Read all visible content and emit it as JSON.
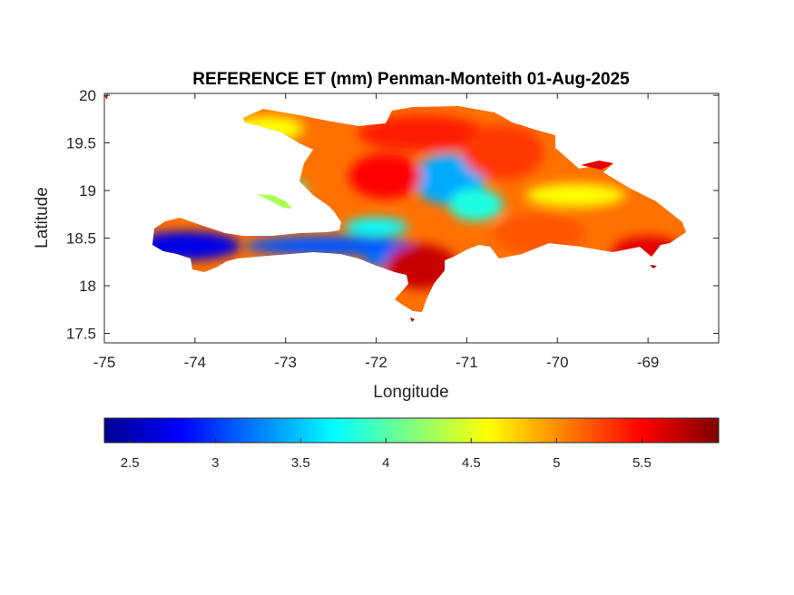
{
  "chart_data": {
    "type": "heatmap",
    "title": "REFERENCE ET (mm) Penman-Monteith 01-Aug-2025",
    "xlabel": "Longitude",
    "ylabel": "Latitude",
    "xlim": [
      -75,
      -68.22
    ],
    "ylim": [
      17.4,
      20.02
    ],
    "xticks": [
      -75,
      -74,
      -73,
      -72,
      -71,
      -70,
      -69
    ],
    "xtick_labels": [
      "-75",
      "-74",
      "-73",
      "-72",
      "-71",
      "-70",
      "-69"
    ],
    "yticks": [
      17.5,
      18,
      18.5,
      19,
      19.5,
      20
    ],
    "ytick_labels": [
      "17.5",
      "18",
      "18.5",
      "19",
      "19.5",
      "20"
    ],
    "colorbar": {
      "range": [
        2.35,
        5.95
      ],
      "ticks": [
        2.5,
        3,
        3.5,
        4,
        4.5,
        5,
        5.5
      ],
      "tick_labels": [
        "2.5",
        "3",
        "3.5",
        "4",
        "4.5",
        "5",
        "5.5"
      ],
      "colormap": "jet",
      "location": "below"
    },
    "regions": [
      {
        "name": "",
        "lon": -74.1,
        "lat": 18.42,
        "value": 2.7
      },
      {
        "name": "",
        "lon": -72.5,
        "lat": 18.42,
        "value": 3.1
      },
      {
        "name": "",
        "lon": -71.8,
        "lat": 18.28,
        "value": 3.2
      },
      {
        "name": "",
        "lon": -71.2,
        "lat": 19.12,
        "value": 3.4
      },
      {
        "name": "",
        "lon": -70.9,
        "lat": 18.85,
        "value": 3.8
      },
      {
        "name": "",
        "lon": -72.0,
        "lat": 18.62,
        "value": 3.7
      },
      {
        "name": "",
        "lon": -72.9,
        "lat": 19.02,
        "value": 3.9
      },
      {
        "name": "",
        "lon": -73.2,
        "lat": 19.65,
        "value": 4.6
      },
      {
        "name": "",
        "lon": -69.8,
        "lat": 18.95,
        "value": 4.6
      },
      {
        "name": "",
        "lon": -70.2,
        "lat": 18.55,
        "value": 5.2
      },
      {
        "name": "",
        "lon": -71.5,
        "lat": 19.6,
        "value": 5.4
      },
      {
        "name": "",
        "lon": -71.9,
        "lat": 19.15,
        "value": 5.5
      },
      {
        "name": "",
        "lon": -71.5,
        "lat": 18.2,
        "value": 5.7
      },
      {
        "name": "",
        "lon": -69.0,
        "lat": 18.35,
        "value": 5.6
      },
      {
        "name": "",
        "lon": -70.6,
        "lat": 19.4,
        "value": 5.3
      }
    ]
  }
}
